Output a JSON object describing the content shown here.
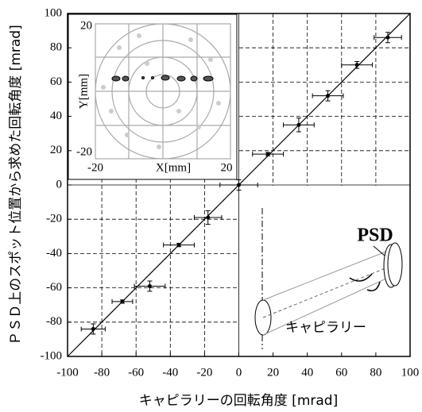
{
  "chart_data": {
    "type": "scatter",
    "x_label": "キャピラリーの回転角度 [mrad]",
    "y_label": "ＰＳＤ上のスポット位置から求めた回転角度 [mrad]",
    "xlim": [
      -100,
      100
    ],
    "ylim": [
      -100,
      100
    ],
    "xticks": [
      -100,
      -80,
      -60,
      -40,
      -20,
      0,
      20,
      40,
      60,
      80,
      100
    ],
    "yticks": [
      -100,
      -80,
      -60,
      -40,
      -20,
      0,
      20,
      40,
      60,
      80,
      100
    ],
    "grid": true,
    "series": [
      {
        "color": "#000000",
        "x": [
          -85,
          -68,
          -52,
          -35,
          -18,
          0,
          17,
          35,
          52,
          69,
          87
        ],
        "values": [
          -84,
          -68,
          -59,
          -35,
          -19,
          0,
          18,
          35,
          52,
          70,
          86
        ],
        "xerr": [
          7,
          6,
          9,
          9,
          8,
          11,
          9,
          9,
          9,
          9,
          8
        ],
        "yerr": [
          3,
          1,
          3,
          1,
          4,
          3,
          1,
          4,
          3,
          2,
          3
        ]
      }
    ],
    "inset": {
      "x_label": "X[mm]",
      "y_label": "Y[mm]",
      "x_min_label": "-20",
      "x_max_label": "20",
      "y_max_label": "20",
      "y_min_label": "-20"
    },
    "annotations": {
      "psd": "PSD",
      "capillary": "キャピラリー"
    }
  }
}
